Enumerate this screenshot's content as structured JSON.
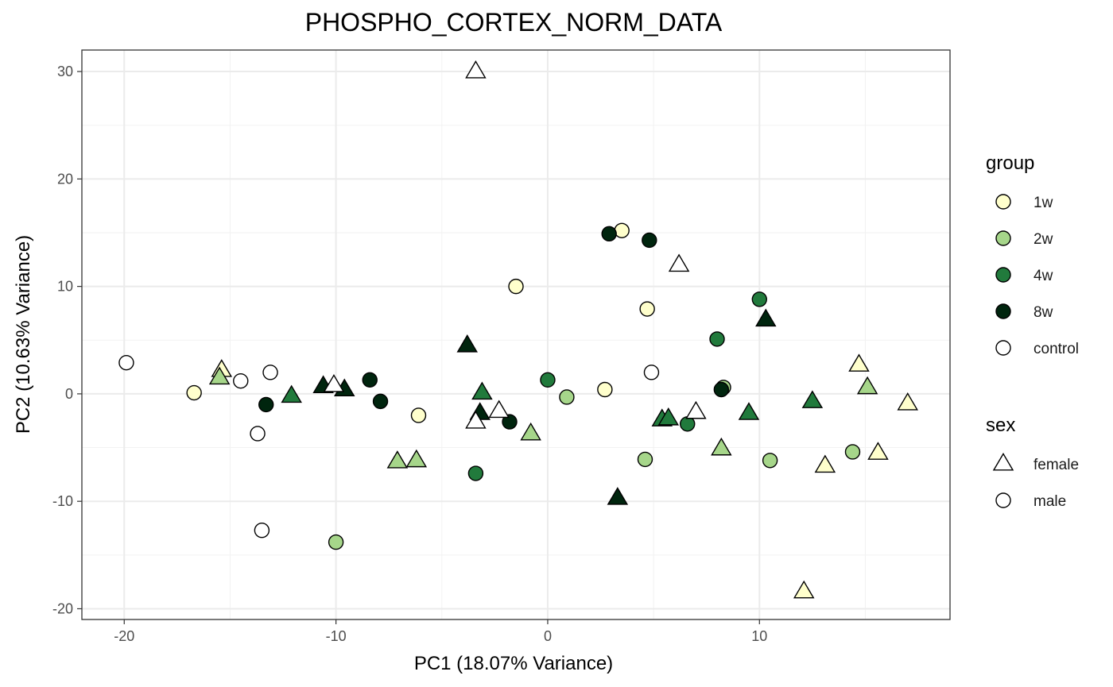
{
  "chart_data": {
    "type": "scatter",
    "title": "PHOSPHO_CORTEX_NORM_DATA",
    "xlabel": "PC1 (18.07% Variance)",
    "ylabel": "PC2 (10.63% Variance)",
    "xlim": [
      -22,
      19
    ],
    "ylim": [
      -21,
      32
    ],
    "xticks": [
      -20,
      -10,
      0,
      10
    ],
    "yticks": [
      -20,
      -10,
      0,
      10,
      20,
      30
    ],
    "grid": true,
    "legend_position": "right",
    "group_legend": {
      "title": "group",
      "items": [
        {
          "label": "1w",
          "color": "#FFFFCC"
        },
        {
          "label": "2w",
          "color": "#A6D68A"
        },
        {
          "label": "4w",
          "color": "#217A3C"
        },
        {
          "label": "8w",
          "color": "#00250E"
        },
        {
          "label": "control",
          "color": "#FFFFFF"
        }
      ]
    },
    "sex_legend": {
      "title": "sex",
      "items": [
        {
          "label": "female",
          "shape": "triangle"
        },
        {
          "label": "male",
          "shape": "circle"
        }
      ]
    },
    "points": [
      {
        "x": -16.7,
        "y": 0.1,
        "group": "1w",
        "sex": "male"
      },
      {
        "x": -15.4,
        "y": 2.2,
        "group": "1w",
        "sex": "female"
      },
      {
        "x": -6.1,
        "y": -2.0,
        "group": "1w",
        "sex": "male"
      },
      {
        "x": -1.5,
        "y": 10.0,
        "group": "1w",
        "sex": "male"
      },
      {
        "x": 2.7,
        "y": 0.4,
        "group": "1w",
        "sex": "male"
      },
      {
        "x": 3.5,
        "y": 15.2,
        "group": "1w",
        "sex": "male"
      },
      {
        "x": 4.7,
        "y": 7.9,
        "group": "1w",
        "sex": "male"
      },
      {
        "x": 12.1,
        "y": -18.4,
        "group": "1w",
        "sex": "female"
      },
      {
        "x": 13.1,
        "y": -6.7,
        "group": "1w",
        "sex": "female"
      },
      {
        "x": 14.7,
        "y": 2.7,
        "group": "1w",
        "sex": "female"
      },
      {
        "x": 15.6,
        "y": -5.5,
        "group": "1w",
        "sex": "female"
      },
      {
        "x": 17.0,
        "y": -0.9,
        "group": "1w",
        "sex": "female"
      },
      {
        "x": -15.5,
        "y": 1.5,
        "group": "2w",
        "sex": "female"
      },
      {
        "x": -10.0,
        "y": -13.8,
        "group": "2w",
        "sex": "male"
      },
      {
        "x": -7.1,
        "y": -6.3,
        "group": "2w",
        "sex": "female"
      },
      {
        "x": -6.2,
        "y": -6.2,
        "group": "2w",
        "sex": "female"
      },
      {
        "x": -0.8,
        "y": -3.7,
        "group": "2w",
        "sex": "female"
      },
      {
        "x": 0.9,
        "y": -0.3,
        "group": "2w",
        "sex": "male"
      },
      {
        "x": 4.6,
        "y": -6.1,
        "group": "2w",
        "sex": "male"
      },
      {
        "x": 8.2,
        "y": -5.1,
        "group": "2w",
        "sex": "female"
      },
      {
        "x": 8.3,
        "y": 0.6,
        "group": "2w",
        "sex": "male"
      },
      {
        "x": 10.5,
        "y": -6.2,
        "group": "2w",
        "sex": "male"
      },
      {
        "x": 14.4,
        "y": -5.4,
        "group": "2w",
        "sex": "male"
      },
      {
        "x": 15.1,
        "y": 0.6,
        "group": "2w",
        "sex": "female"
      },
      {
        "x": -12.1,
        "y": -0.2,
        "group": "4w",
        "sex": "female"
      },
      {
        "x": -3.4,
        "y": -7.4,
        "group": "4w",
        "sex": "male"
      },
      {
        "x": -3.1,
        "y": 0.1,
        "group": "4w",
        "sex": "female"
      },
      {
        "x": 0.0,
        "y": 1.3,
        "group": "4w",
        "sex": "male"
      },
      {
        "x": 5.4,
        "y": -2.4,
        "group": "4w",
        "sex": "female"
      },
      {
        "x": 5.7,
        "y": -2.3,
        "group": "4w",
        "sex": "female"
      },
      {
        "x": 6.6,
        "y": -2.8,
        "group": "4w",
        "sex": "male"
      },
      {
        "x": 8.0,
        "y": 5.1,
        "group": "4w",
        "sex": "male"
      },
      {
        "x": 9.5,
        "y": -1.8,
        "group": "4w",
        "sex": "female"
      },
      {
        "x": 10.0,
        "y": 8.8,
        "group": "4w",
        "sex": "male"
      },
      {
        "x": 12.5,
        "y": -0.7,
        "group": "4w",
        "sex": "female"
      },
      {
        "x": -13.3,
        "y": -1.0,
        "group": "8w",
        "sex": "male"
      },
      {
        "x": -10.6,
        "y": 0.7,
        "group": "8w",
        "sex": "female"
      },
      {
        "x": -9.6,
        "y": 0.4,
        "group": "8w",
        "sex": "female"
      },
      {
        "x": -8.4,
        "y": 1.3,
        "group": "8w",
        "sex": "male"
      },
      {
        "x": -7.9,
        "y": -0.7,
        "group": "8w",
        "sex": "male"
      },
      {
        "x": -3.8,
        "y": 4.5,
        "group": "8w",
        "sex": "female"
      },
      {
        "x": -3.2,
        "y": -1.8,
        "group": "8w",
        "sex": "female"
      },
      {
        "x": -1.8,
        "y": -2.6,
        "group": "8w",
        "sex": "male"
      },
      {
        "x": 2.9,
        "y": 14.9,
        "group": "8w",
        "sex": "male"
      },
      {
        "x": 3.3,
        "y": -9.7,
        "group": "8w",
        "sex": "female"
      },
      {
        "x": 4.8,
        "y": 14.3,
        "group": "8w",
        "sex": "male"
      },
      {
        "x": 8.2,
        "y": 0.4,
        "group": "8w",
        "sex": "male"
      },
      {
        "x": 10.3,
        "y": 6.9,
        "group": "8w",
        "sex": "female"
      },
      {
        "x": -19.9,
        "y": 2.9,
        "group": "control",
        "sex": "male"
      },
      {
        "x": -14.5,
        "y": 1.2,
        "group": "control",
        "sex": "male"
      },
      {
        "x": -13.7,
        "y": -3.7,
        "group": "control",
        "sex": "male"
      },
      {
        "x": -13.5,
        "y": -12.7,
        "group": "control",
        "sex": "male"
      },
      {
        "x": -13.1,
        "y": 2.0,
        "group": "control",
        "sex": "male"
      },
      {
        "x": -10.1,
        "y": 0.8,
        "group": "control",
        "sex": "female"
      },
      {
        "x": -3.4,
        "y": 30.0,
        "group": "control",
        "sex": "female"
      },
      {
        "x": -3.4,
        "y": -2.6,
        "group": "control",
        "sex": "female"
      },
      {
        "x": -2.3,
        "y": -1.6,
        "group": "control",
        "sex": "female"
      },
      {
        "x": 4.9,
        "y": 2.0,
        "group": "control",
        "sex": "male"
      },
      {
        "x": 6.2,
        "y": 12.0,
        "group": "control",
        "sex": "female"
      },
      {
        "x": 7.0,
        "y": -1.7,
        "group": "control",
        "sex": "female"
      }
    ]
  }
}
